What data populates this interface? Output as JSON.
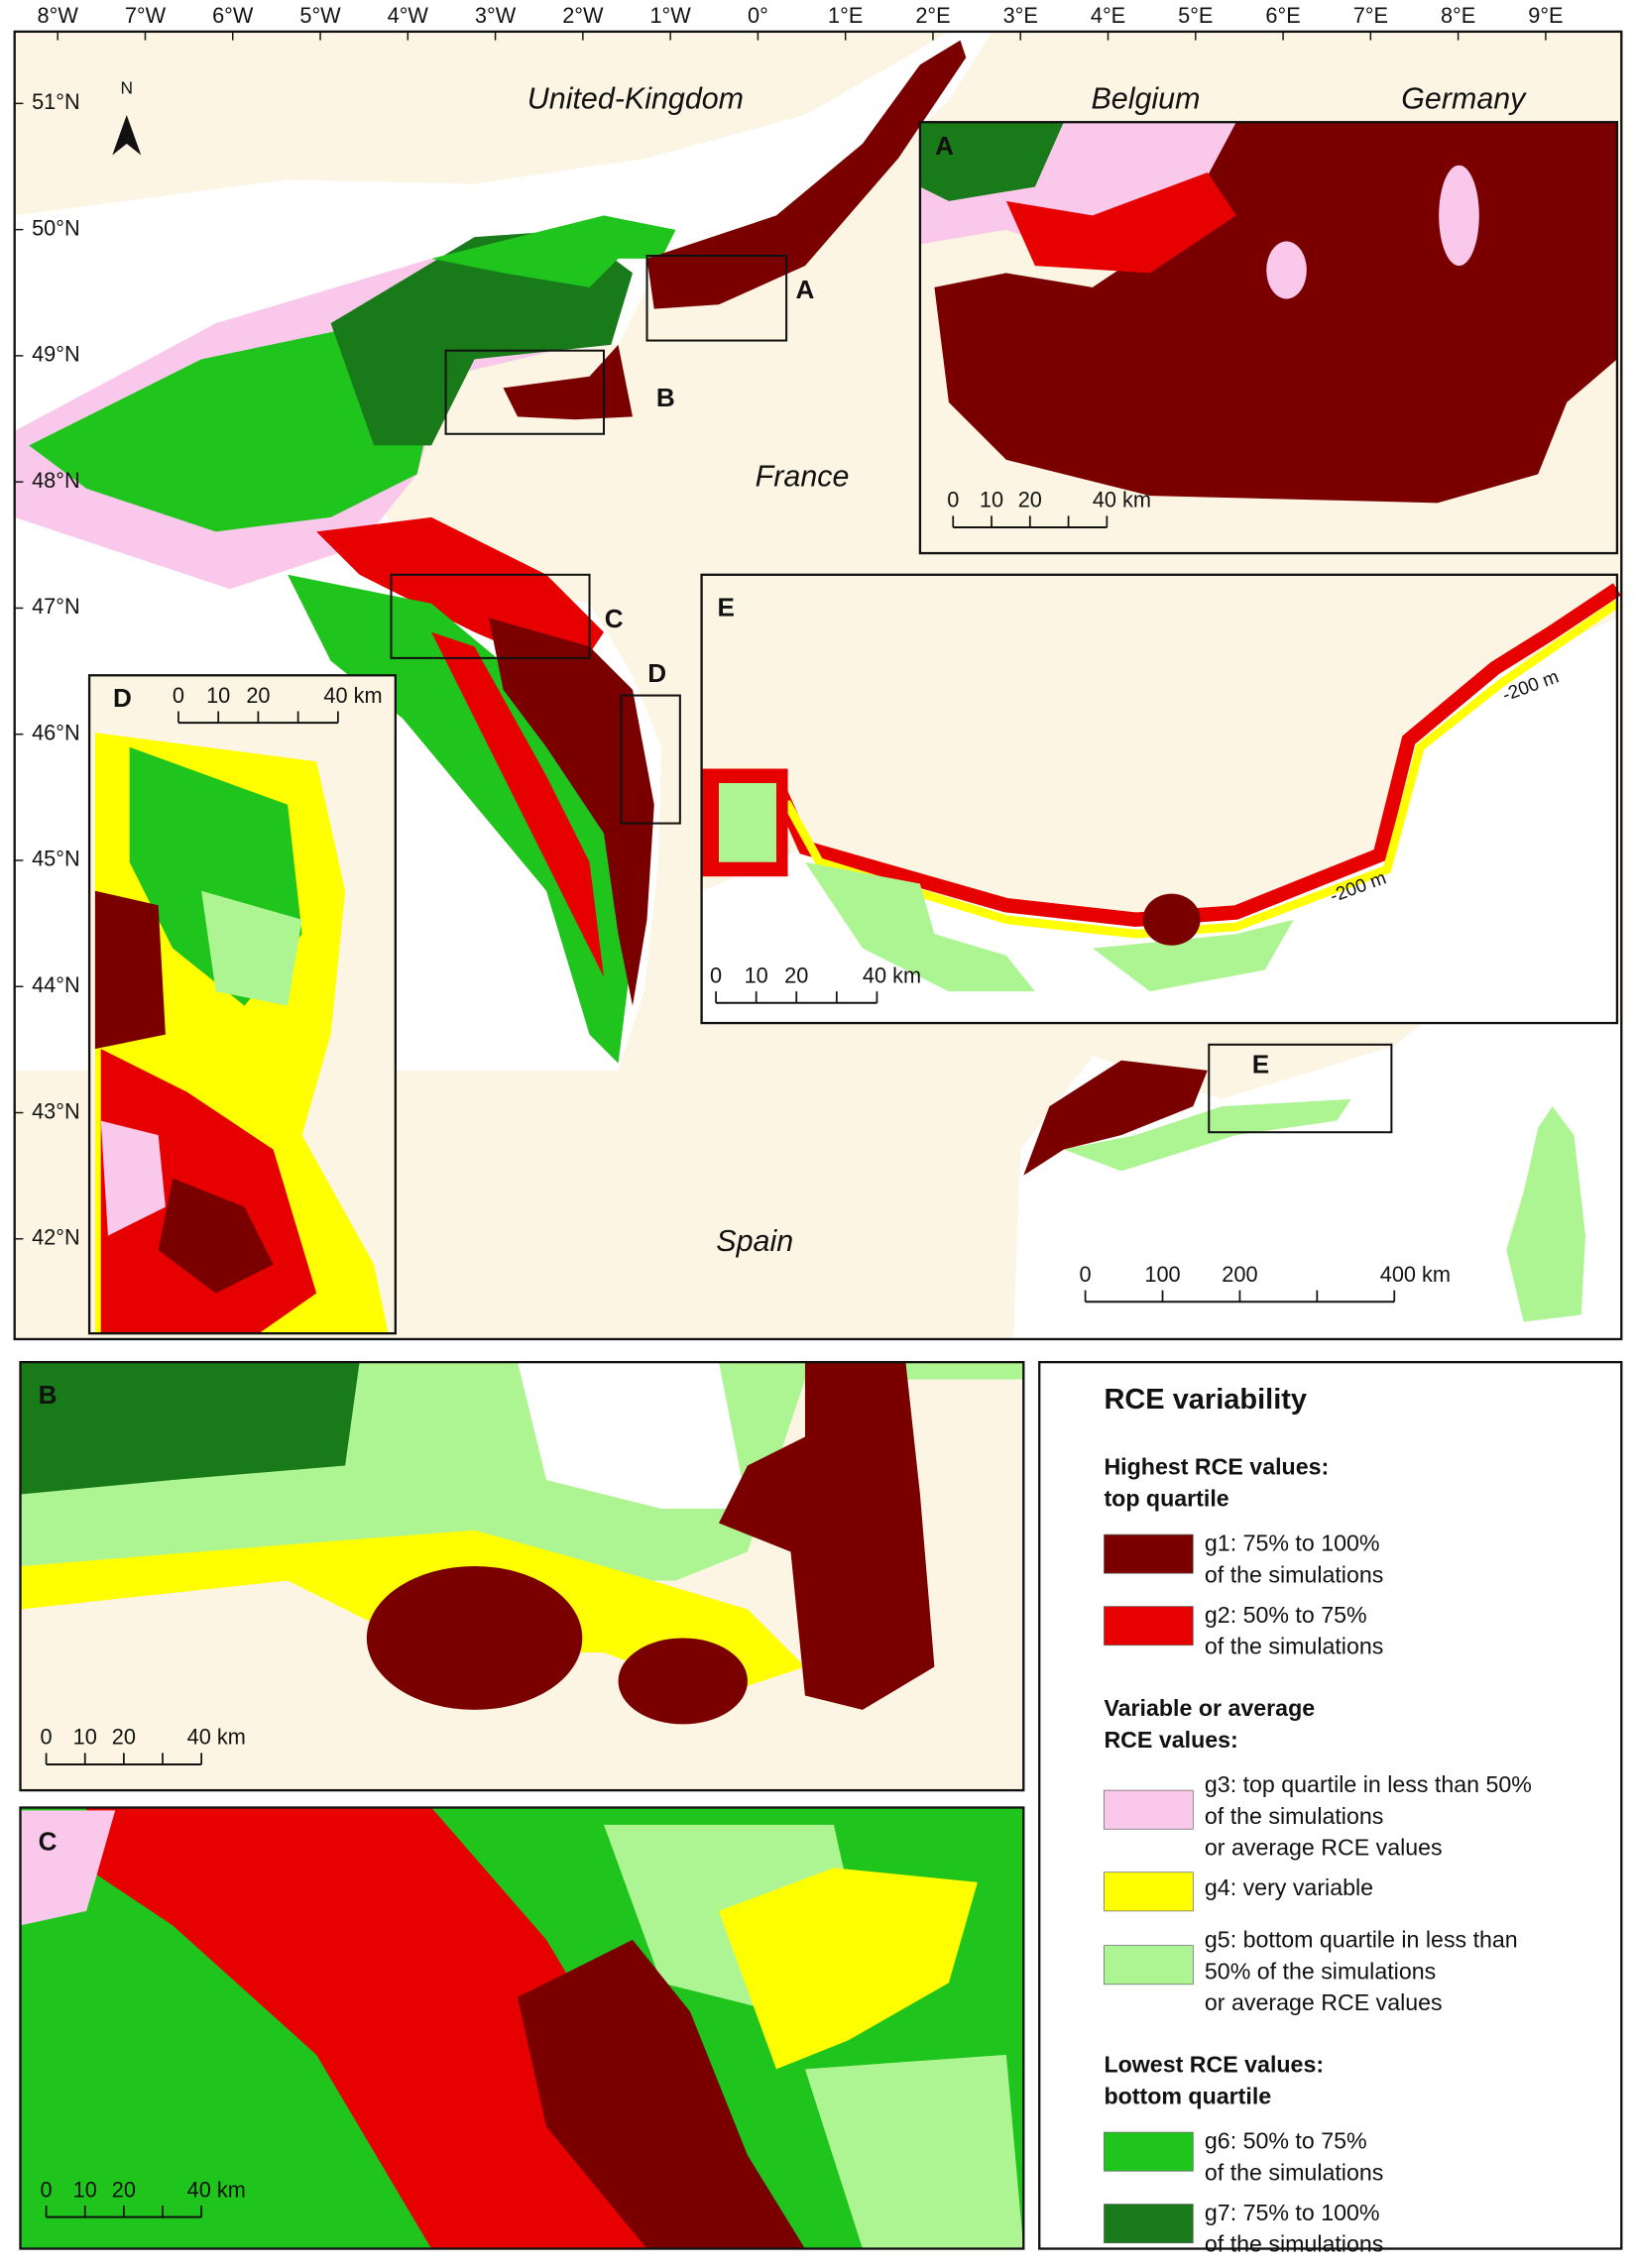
{
  "main_map": {
    "longitude_labels": [
      "8°W",
      "7°W",
      "6°W",
      "5°W",
      "4°W",
      "3°W",
      "2°W",
      "1°W",
      "0°",
      "1°E",
      "2°E",
      "3°E",
      "4°E",
      "5°E",
      "6°E",
      "7°E",
      "8°E",
      "9°E"
    ],
    "latitude_labels": [
      "51°N",
      "50°N",
      "49°N",
      "48°N",
      "47°N",
      "46°N",
      "45°N",
      "44°N",
      "43°N",
      "42°N"
    ],
    "north_arrow": "N",
    "countries": [
      "United-Kingdom",
      "Belgium",
      "Germany",
      "France",
      "Spain"
    ],
    "box_labels": [
      "A",
      "B",
      "C",
      "D",
      "E"
    ],
    "scale_bar": [
      "0",
      "100",
      "200",
      "400 km"
    ]
  },
  "insets": {
    "A": {
      "label": "A",
      "scale_bar": [
        "0",
        "10",
        "20",
        "40 km"
      ]
    },
    "B": {
      "label": "B",
      "scale_bar": [
        "0",
        "10",
        "20",
        "40 km"
      ]
    },
    "C": {
      "label": "C",
      "scale_bar": [
        "0",
        "10",
        "20",
        "40 km"
      ]
    },
    "D": {
      "label": "D",
      "scale_bar": [
        "0",
        "10",
        "20",
        "40 km"
      ]
    },
    "E": {
      "label": "E",
      "scale_bar": [
        "0",
        "10",
        "20",
        "40 km"
      ],
      "depth_labels": [
        "-200 m",
        "-200 m"
      ]
    }
  },
  "legend": {
    "title": "RCE variability",
    "groups": [
      {
        "heading_lines": [
          "Highest RCE values:",
          "top quartile"
        ],
        "items": [
          {
            "swatch_color": "#7a0000",
            "label_lines": [
              "g1: 75% to 100%",
              "of the simulations"
            ]
          },
          {
            "swatch_color": "#e60000",
            "label_lines": [
              "g2: 50% to 75%",
              "of the simulations"
            ]
          }
        ]
      },
      {
        "heading_lines": [
          "Variable or average",
          "RCE values:"
        ],
        "items": [
          {
            "swatch_color": "#f9c8ea",
            "label_lines": [
              "g3: top quartile in less than 50%",
              "of the simulations",
              "or average RCE values"
            ]
          },
          {
            "swatch_color": "#ffff00",
            "label_lines": [
              "g4: very variable"
            ]
          },
          {
            "swatch_color": "#adf592",
            "label_lines": [
              "g5: bottom quartile in less than",
              "50% of the simulations",
              "or average RCE values"
            ]
          }
        ]
      },
      {
        "heading_lines": [
          "Lowest RCE values:",
          "bottom quartile"
        ],
        "items": [
          {
            "swatch_color": "#1fc41c",
            "label_lines": [
              "g6: 50% to 75%",
              "of the simulations"
            ]
          },
          {
            "swatch_color": "#197a1a",
            "label_lines": [
              "g7: 75% to 100%",
              "of the simulations"
            ]
          }
        ]
      }
    ]
  }
}
